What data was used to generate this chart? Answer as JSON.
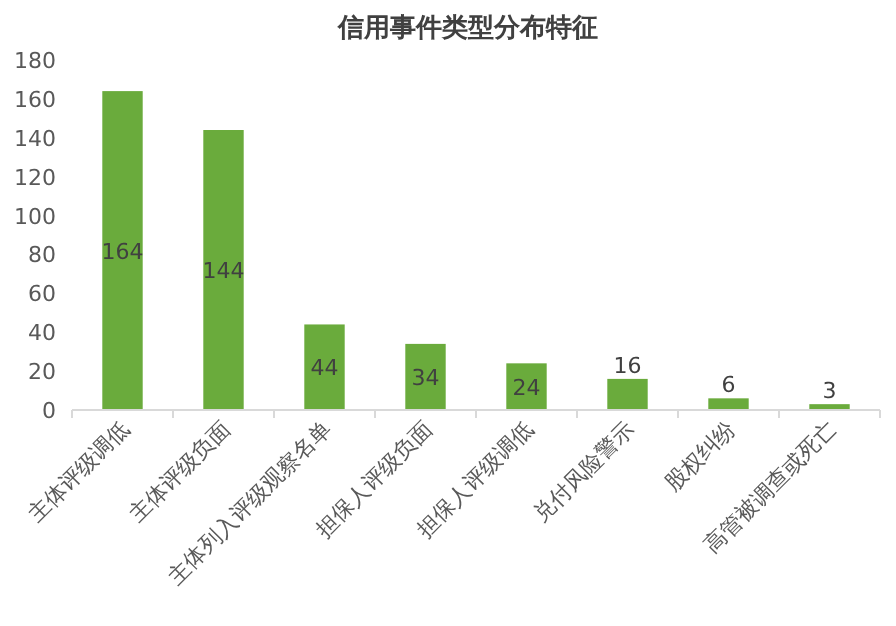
{
  "chart_data": {
    "type": "bar",
    "title": "信用事件类型分布特征",
    "categories": [
      "主体评级调低",
      "主体评级负面",
      "主体列入评级观察名单",
      "担保人评级负面",
      "担保人评级调低",
      "兑付风险警示",
      "股权纠纷",
      "高管被调查或死亡"
    ],
    "values": [
      164,
      144,
      44,
      34,
      24,
      16,
      6,
      3
    ],
    "color": "#6aab3c",
    "ylim": [
      0,
      180
    ],
    "yticks": [
      0,
      20,
      40,
      60,
      80,
      100,
      120,
      140,
      160,
      180
    ],
    "grid": false,
    "data_labels": true
  }
}
